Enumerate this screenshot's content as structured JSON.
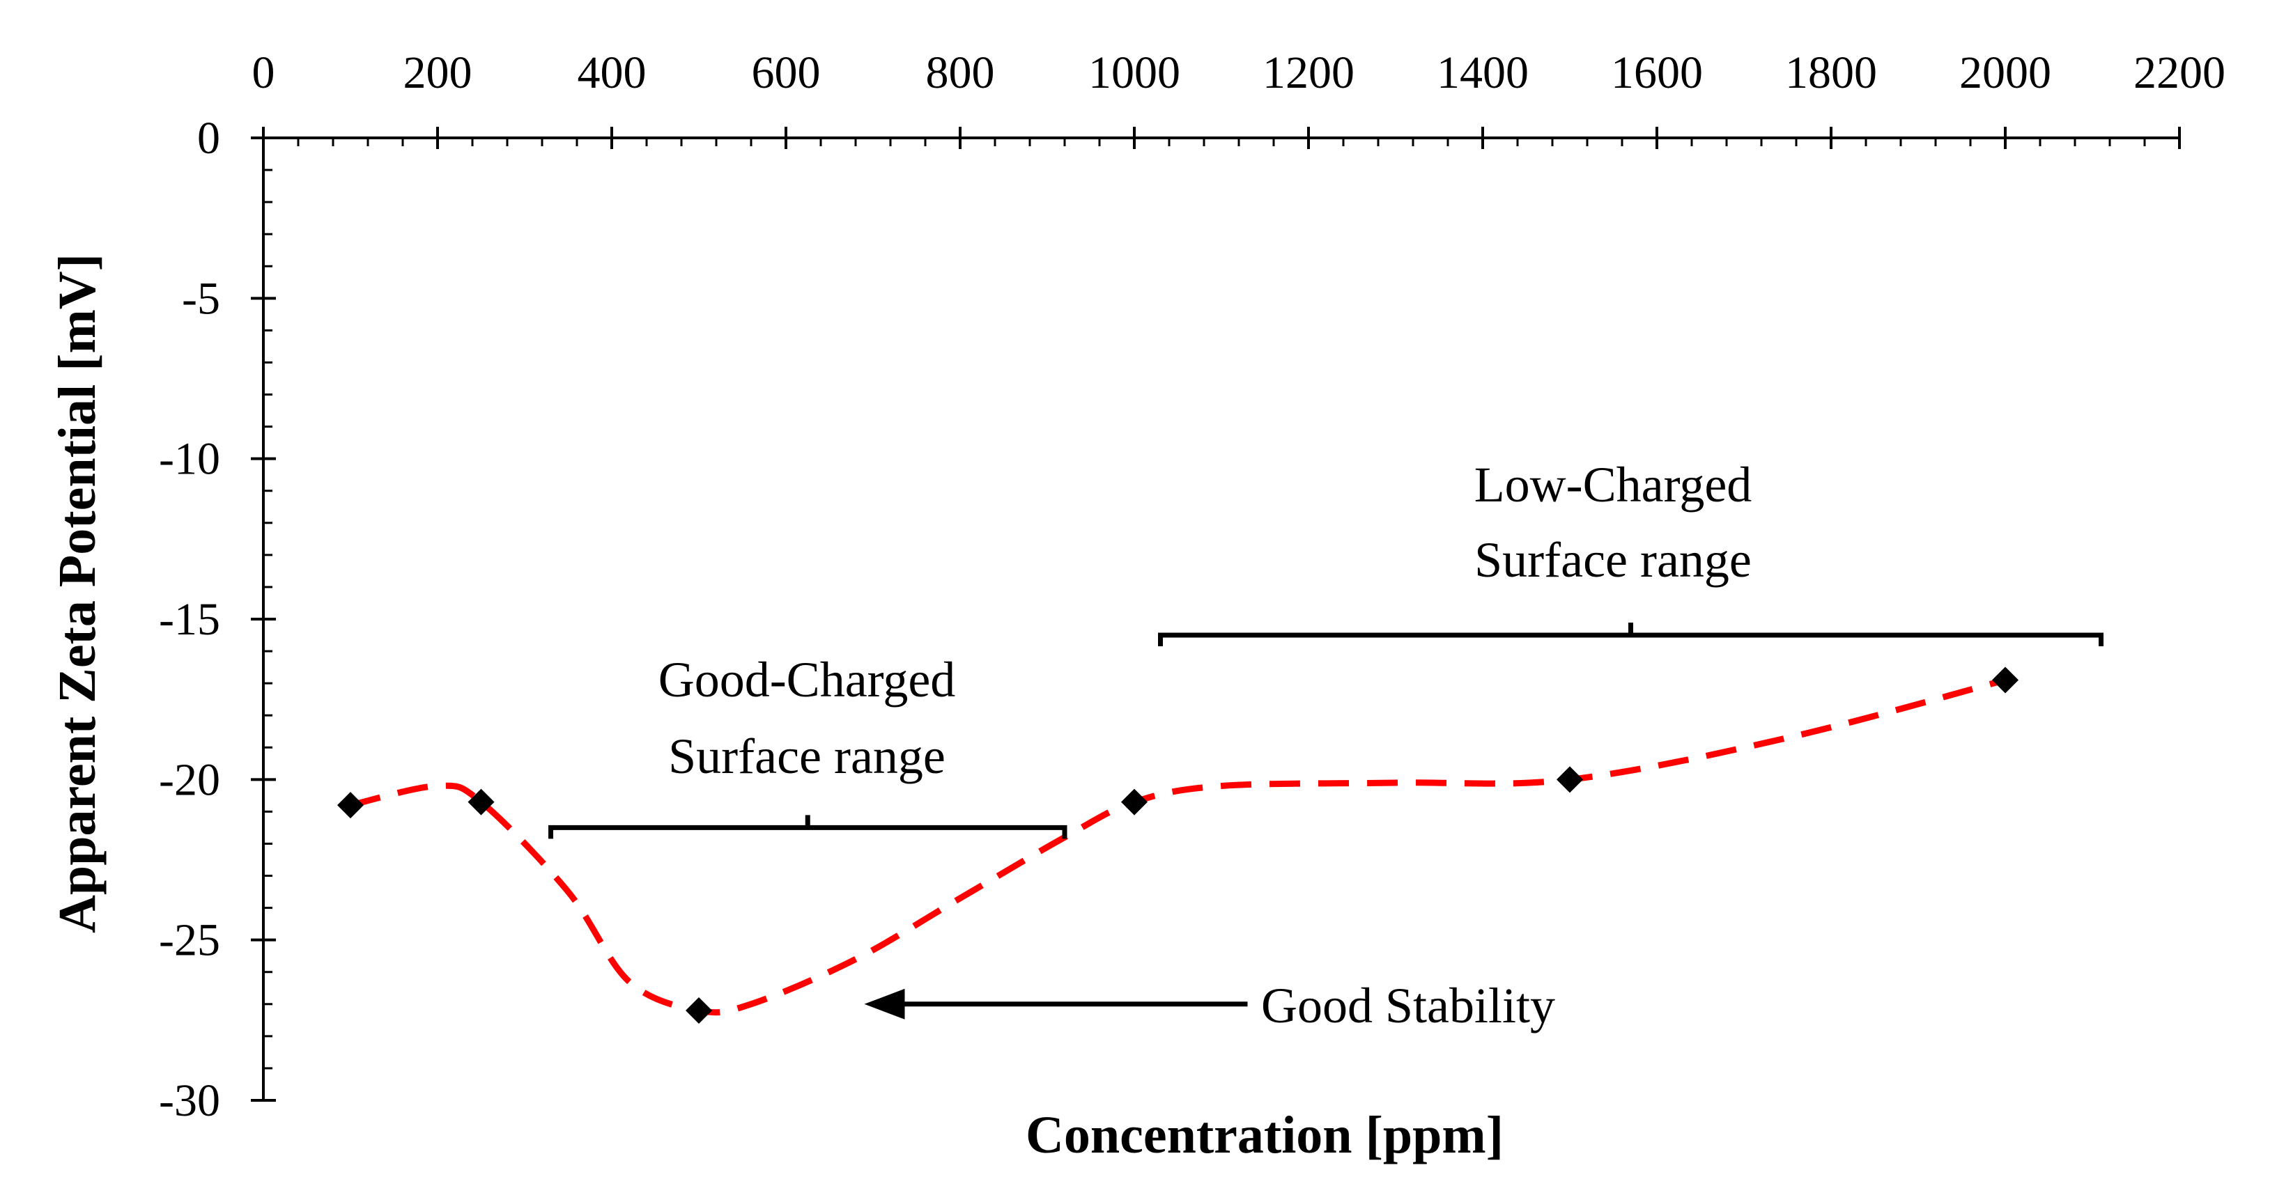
{
  "chart_data": {
    "type": "scatter",
    "title": "",
    "xlabel": "Concentration [ppm]",
    "ylabel": "Apparent Zeta Potential [mV]",
    "xlim": [
      0,
      2200
    ],
    "ylim": [
      -30,
      0
    ],
    "x_ticks": [
      0,
      200,
      400,
      600,
      800,
      1000,
      1200,
      1400,
      1600,
      1800,
      2000,
      2200
    ],
    "y_ticks": [
      0,
      -5,
      -10,
      -15,
      -20,
      -25,
      -30
    ],
    "x_axis_position": "top",
    "grid": false,
    "series": [
      {
        "name": "Measured",
        "marker": "diamond",
        "color": "#000000",
        "points": [
          {
            "x": 100,
            "y": -20.8
          },
          {
            "x": 250,
            "y": -20.7
          },
          {
            "x": 500,
            "y": -27.2
          },
          {
            "x": 1000,
            "y": -20.7
          },
          {
            "x": 1500,
            "y": -20.0
          },
          {
            "x": 2000,
            "y": -16.9
          }
        ]
      }
    ],
    "trend_curve": {
      "style": "dashed",
      "color": "#ff0000",
      "points": [
        {
          "x": 100,
          "y": -20.8
        },
        {
          "x": 200,
          "y": -20.2
        },
        {
          "x": 250,
          "y": -20.7
        },
        {
          "x": 350,
          "y": -23.5
        },
        {
          "x": 420,
          "y": -26.3
        },
        {
          "x": 500,
          "y": -27.2
        },
        {
          "x": 560,
          "y": -27.0
        },
        {
          "x": 680,
          "y": -25.6
        },
        {
          "x": 800,
          "y": -23.7
        },
        {
          "x": 920,
          "y": -21.8
        },
        {
          "x": 1000,
          "y": -20.7
        },
        {
          "x": 1100,
          "y": -20.2
        },
        {
          "x": 1300,
          "y": -20.1
        },
        {
          "x": 1500,
          "y": -20.0
        },
        {
          "x": 1750,
          "y": -18.7
        },
        {
          "x": 2000,
          "y": -16.9
        }
      ]
    },
    "annotations": {
      "good_charged": {
        "lines": [
          "Good-Charged",
          "Surface range"
        ],
        "range_x": [
          330,
          920
        ],
        "bracket_y": -21.5
      },
      "low_charged": {
        "lines": [
          "Low-Charged",
          "Surface range"
        ],
        "range_x": [
          1030,
          2110
        ],
        "bracket_y": -15.5
      },
      "good_stability": {
        "text": "Good Stability",
        "arrow_from_x": 1130,
        "arrow_to_x": 690,
        "y": -27.0
      }
    }
  }
}
